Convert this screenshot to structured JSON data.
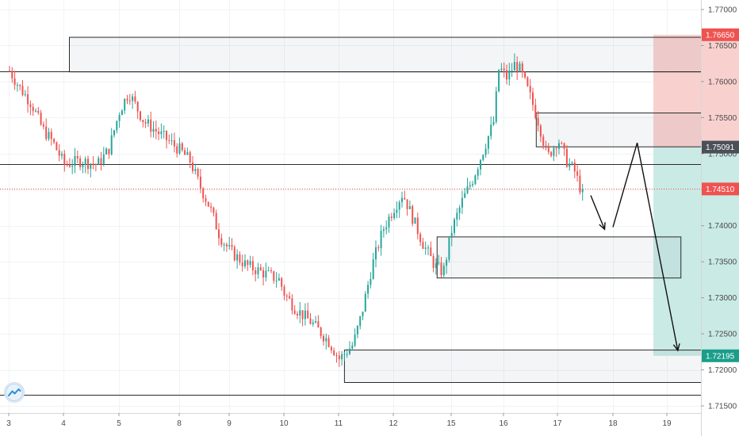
{
  "chart_data": {
    "type": "candlestick",
    "instrument": "",
    "title": "",
    "x_axis": {
      "tick_labels": [
        "3",
        "4",
        "5",
        "8",
        "9",
        "10",
        "11",
        "12",
        "15",
        "16",
        "17",
        "18",
        "19"
      ],
      "range": [
        "3",
        "19"
      ]
    },
    "y_axis": {
      "position": "right",
      "ylim": [
        1.7145,
        1.7715
      ],
      "tick_labels": [
        "1.71500",
        "1.72000",
        "1.72500",
        "1.73000",
        "1.73500",
        "1.74000",
        "1.74500",
        "1.75000",
        "1.75500",
        "1.76000",
        "1.76500",
        "1.77000"
      ],
      "tick_values": [
        1.715,
        1.72,
        1.725,
        1.73,
        1.735,
        1.74,
        1.745,
        1.75,
        1.755,
        1.76,
        1.765,
        1.77
      ]
    },
    "grid": true,
    "price_path": [
      [
        3.0,
        1.7615
      ],
      [
        3.2,
        1.759
      ],
      [
        3.4,
        1.757
      ],
      [
        3.6,
        1.7535
      ],
      [
        3.8,
        1.7515
      ],
      [
        4.0,
        1.7485
      ],
      [
        4.3,
        1.749
      ],
      [
        4.6,
        1.7485
      ],
      [
        4.8,
        1.7505
      ],
      [
        5.0,
        1.756
      ],
      [
        5.15,
        1.7585
      ],
      [
        5.4,
        1.7545
      ],
      [
        5.7,
        1.7525
      ],
      [
        6.0,
        1.7505
      ],
      [
        6.2,
        1.749
      ],
      [
        6.4,
        1.7455
      ],
      [
        6.6,
        1.7425
      ],
      [
        6.8,
        1.7385
      ],
      [
        7.0,
        1.7365
      ],
      [
        7.3,
        1.7345
      ],
      [
        7.6,
        1.7335
      ],
      [
        7.9,
        1.7325
      ],
      [
        8.0,
        1.7305
      ],
      [
        8.2,
        1.7285
      ],
      [
        8.5,
        1.7265
      ],
      [
        8.8,
        1.724
      ],
      [
        9.0,
        1.7215
      ],
      [
        9.25,
        1.7235
      ],
      [
        9.4,
        1.7275
      ],
      [
        9.6,
        1.7345
      ],
      [
        9.8,
        1.7395
      ],
      [
        10.0,
        1.7425
      ],
      [
        10.15,
        1.7445
      ],
      [
        10.3,
        1.7415
      ],
      [
        10.5,
        1.7375
      ],
      [
        10.7,
        1.7345
      ],
      [
        10.85,
        1.7335
      ],
      [
        11.0,
        1.7395
      ],
      [
        11.2,
        1.7435
      ],
      [
        11.4,
        1.7465
      ],
      [
        11.6,
        1.7505
      ],
      [
        11.8,
        1.7545
      ],
      [
        11.9,
        1.762
      ],
      [
        12.05,
        1.7605
      ],
      [
        12.2,
        1.7625
      ],
      [
        12.3,
        1.7615
      ],
      [
        12.5,
        1.7575
      ],
      [
        12.65,
        1.754
      ],
      [
        12.8,
        1.7495
      ],
      [
        13.0,
        1.752
      ],
      [
        13.15,
        1.749
      ],
      [
        13.3,
        1.7475
      ],
      [
        13.45,
        1.744
      ]
    ],
    "current_price": 1.7451,
    "price_labels": [
      {
        "value": 1.7665,
        "label": "1.76650",
        "color": "#ef5350"
      },
      {
        "value": 1.75091,
        "label": "1.75091",
        "color": "#4b4f57"
      },
      {
        "value": 1.7451,
        "label": "1.74510",
        "color": "#ef5350"
      },
      {
        "value": 1.72195,
        "label": "1.72195",
        "color": "#1a9e8a"
      }
    ],
    "position": {
      "type": "short",
      "entry": 1.75091,
      "stop_loss": 1.7665,
      "take_profit": 1.72195,
      "from_x": 16.75,
      "to_x": 18.8,
      "loss_color": "#f7c9c7",
      "profit_color": "#c4e8e2"
    },
    "zones": [
      {
        "name": "supply-zone-top",
        "x1": 4.1,
        "x2": 19.6,
        "top": 1.7662,
        "bottom": 1.7614
      },
      {
        "name": "supply-zone-right",
        "x1": 12.6,
        "x2": 19.6,
        "top": 1.7557,
        "bottom": 1.751
      },
      {
        "name": "demand-zone-middle",
        "x1": 10.75,
        "x2": 15.25,
        "top": 1.7385,
        "bottom": 1.7328
      },
      {
        "name": "demand-zone-bottom",
        "x1": 9.1,
        "x2": 19.6,
        "top": 1.7228,
        "bottom": 1.7183
      }
    ],
    "horizontal_lines": [
      {
        "name": "level-line-upper",
        "x1": 3.0,
        "x2": 19.6,
        "value": 1.7614
      },
      {
        "name": "level-line-middle",
        "x1": 3.0,
        "x2": 19.6,
        "value": 1.7486
      },
      {
        "name": "level-line-bottom",
        "x1": 3.0,
        "x2": 19.6,
        "value": 1.7165
      }
    ],
    "projection_path": [
      [
        13.6,
        1.7442
      ],
      [
        13.85,
        1.7395
      ],
      [
        14.0,
        1.7398
      ],
      [
        14.45,
        1.7515
      ],
      [
        15.2,
        1.7227
      ]
    ]
  }
}
